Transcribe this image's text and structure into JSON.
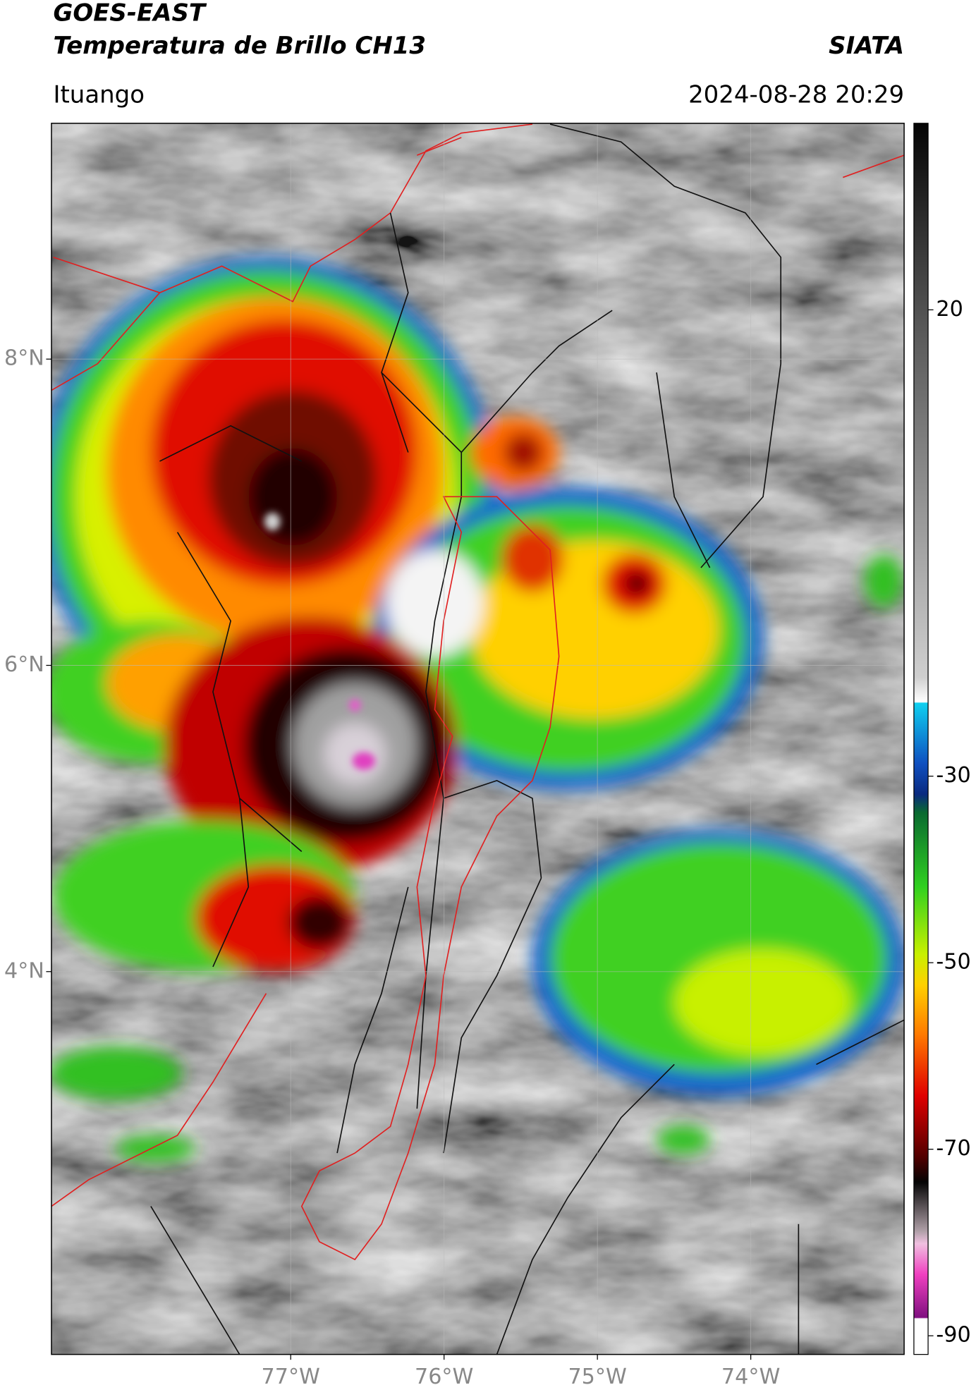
{
  "header": {
    "title": "GOES-EAST",
    "subtitle": "Temperatura de Brillo CH13",
    "source": "SIATA",
    "location": "Ituango",
    "datetime": "2024-08-28 20:29"
  },
  "map": {
    "xlim": [
      -78.56,
      -73.0
    ],
    "ylim": [
      1.5,
      9.54
    ],
    "xticks": [
      {
        "value": -77,
        "label": "77°W"
      },
      {
        "value": -76,
        "label": "76°W"
      },
      {
        "value": -75,
        "label": "75°W"
      },
      {
        "value": -74,
        "label": "74°W"
      }
    ],
    "yticks": [
      {
        "value": 8,
        "label": "8°N"
      },
      {
        "value": 6,
        "label": "6°N"
      },
      {
        "value": 4,
        "label": "4°N"
      }
    ],
    "grid": true
  },
  "colorbar": {
    "lim": [
      -92,
      40
    ],
    "ticks": [
      20,
      -30,
      -50,
      -70,
      -90
    ]
  }
}
